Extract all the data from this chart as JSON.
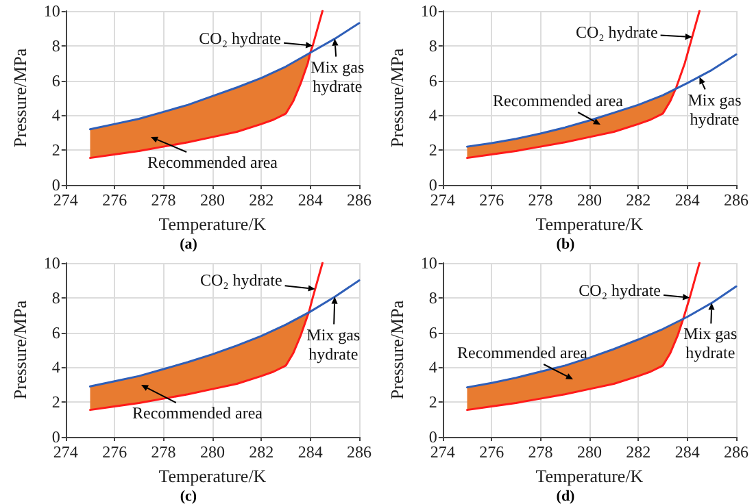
{
  "chart_data": [
    {
      "type": "line",
      "title": "(a)",
      "xlabel": "Temperature/K",
      "ylabel": "Pressure/MPa",
      "xlim": [
        274,
        286
      ],
      "xticks": [
        274,
        276,
        278,
        280,
        282,
        284,
        286
      ],
      "ylim": [
        0,
        10
      ],
      "yticks": [
        0,
        2,
        4,
        6,
        8,
        10
      ],
      "grid": true,
      "marker": "none",
      "line_style": "solid",
      "annotations": [
        {
          "text": "CO₂ hydrate",
          "x": 284.1,
          "y": 8.0
        },
        {
          "text": "Mix gas hydrate",
          "x": 285,
          "y": 8.4
        },
        "Recommended area"
      ],
      "series": [
        {
          "color": "#ff1a1a",
          "x": [
            275,
            276,
            277,
            278,
            279,
            280,
            281,
            282,
            282.5,
            283,
            283.3,
            283.6,
            283.9,
            284.0,
            284.1,
            284.3,
            284.5
          ],
          "values": [
            1.55,
            1.75,
            1.95,
            2.2,
            2.45,
            2.75,
            3.05,
            3.5,
            3.75,
            4.1,
            4.8,
            5.8,
            7.0,
            7.6,
            8.0,
            9.0,
            10
          ],
          "lower": [
            1.55,
            1.75,
            1.95,
            2.2,
            2.45,
            2.75,
            3.05,
            3.5,
            3.75,
            4.1,
            4.8,
            5.8,
            7.0,
            7.6,
            null,
            null,
            null
          ],
          "upper": [
            3.2,
            3.5,
            3.8,
            4.2,
            4.6,
            5.1,
            5.6,
            6.15,
            6.45,
            6.8,
            7.0,
            7.25,
            7.5,
            7.6,
            null,
            null,
            null
          ]
        },
        {
          "color": "#2f5fb8",
          "x": [
            275,
            276,
            277,
            278,
            279,
            280,
            281,
            282,
            283,
            284,
            285,
            286
          ],
          "values": [
            3.2,
            3.5,
            3.8,
            4.2,
            4.6,
            5.1,
            5.6,
            6.15,
            6.8,
            7.6,
            8.4,
            9.3
          ]
        }
      ]
    },
    {
      "type": "line",
      "title": "(b)",
      "xlabel": "Temperature/K",
      "ylabel": "Pressure/MPa",
      "xlim": [
        274,
        286
      ],
      "xticks": [
        274,
        276,
        278,
        280,
        282,
        284,
        286
      ],
      "ylim": [
        0,
        10
      ],
      "yticks": [
        0,
        2,
        4,
        6,
        8,
        10
      ],
      "grid": true,
      "marker": "none",
      "line_style": "solid",
      "annotations": [
        {
          "text": "CO₂ hydrate",
          "x": 284.2,
          "y": 8.5
        },
        {
          "text": "Mix gas hydrate",
          "x": 284.5,
          "y": 6.2
        },
        "Recommended area"
      ],
      "series": [
        {
          "color": "#ff1a1a",
          "x": [
            275,
            276,
            277,
            278,
            279,
            280,
            281,
            282,
            282.5,
            283,
            283.3,
            283.55,
            283.9,
            284.1,
            284.3,
            284.5
          ],
          "values": [
            1.55,
            1.75,
            1.95,
            2.2,
            2.45,
            2.75,
            3.05,
            3.5,
            3.75,
            4.1,
            4.8,
            5.6,
            7.0,
            8.0,
            9.0,
            10
          ],
          "lower": [
            1.55,
            1.75,
            1.95,
            2.2,
            2.45,
            2.75,
            3.05,
            3.5,
            3.75,
            4.1,
            4.8,
            5.6,
            null,
            null,
            null,
            null
          ],
          "upper": [
            2.2,
            2.4,
            2.65,
            2.95,
            3.3,
            3.7,
            4.15,
            4.6,
            4.85,
            5.15,
            5.35,
            5.6,
            null,
            null,
            null,
            null
          ]
        },
        {
          "color": "#2f5fb8",
          "x": [
            275,
            276,
            277,
            278,
            279,
            280,
            281,
            282,
            283,
            284,
            285,
            286
          ],
          "values": [
            2.2,
            2.4,
            2.65,
            2.95,
            3.3,
            3.7,
            4.15,
            4.6,
            5.15,
            5.85,
            6.6,
            7.5
          ]
        }
      ]
    },
    {
      "type": "line",
      "title": "(c)",
      "xlabel": "Temperature/K",
      "ylabel": "Pressure/MPa",
      "xlim": [
        274,
        286
      ],
      "xticks": [
        274,
        276,
        278,
        280,
        282,
        284,
        286
      ],
      "ylim": [
        0,
        10
      ],
      "yticks": [
        0,
        2,
        4,
        6,
        8,
        10
      ],
      "grid": true,
      "marker": "none",
      "line_style": "solid",
      "annotations": [
        {
          "text": "CO₂ hydrate",
          "x": 284.2,
          "y": 8.5
        },
        {
          "text": "Mix gas hydrate",
          "x": 285,
          "y": 8.05
        },
        "Recommended area"
      ],
      "series": [
        {
          "color": "#ff1a1a",
          "x": [
            275,
            276,
            277,
            278,
            279,
            280,
            281,
            282,
            282.5,
            283,
            283.3,
            283.6,
            283.95,
            284.1,
            284.3,
            284.5
          ],
          "values": [
            1.55,
            1.75,
            1.95,
            2.2,
            2.45,
            2.75,
            3.05,
            3.5,
            3.75,
            4.1,
            4.8,
            5.8,
            7.2,
            8.0,
            9.0,
            10
          ],
          "lower": [
            1.55,
            1.75,
            1.95,
            2.2,
            2.45,
            2.75,
            3.05,
            3.5,
            3.75,
            4.1,
            4.8,
            5.8,
            7.2,
            null,
            null,
            null
          ],
          "upper": [
            2.9,
            3.2,
            3.5,
            3.9,
            4.3,
            4.75,
            5.25,
            5.8,
            6.1,
            6.45,
            6.7,
            6.9,
            7.2,
            null,
            null,
            null
          ]
        },
        {
          "color": "#2f5fb8",
          "x": [
            275,
            276,
            277,
            278,
            279,
            280,
            281,
            282,
            283,
            284,
            285,
            286
          ],
          "values": [
            2.9,
            3.2,
            3.5,
            3.9,
            4.3,
            4.75,
            5.25,
            5.8,
            6.45,
            7.2,
            8.05,
            9.0
          ]
        }
      ]
    },
    {
      "type": "line",
      "title": "(d)",
      "xlabel": "Temperature/K",
      "ylabel": "Pressure/MPa",
      "xlim": [
        274,
        286
      ],
      "xticks": [
        274,
        276,
        278,
        280,
        282,
        284,
        286
      ],
      "ylim": [
        0,
        10
      ],
      "yticks": [
        0,
        2,
        4,
        6,
        8,
        10
      ],
      "grid": true,
      "marker": "none",
      "line_style": "solid",
      "annotations": [
        {
          "text": "CO₂ hydrate",
          "x": 284.1,
          "y": 8.0
        },
        {
          "text": "Mix gas hydrate",
          "x": 285,
          "y": 7.7
        },
        "Recommended area"
      ],
      "series": [
        {
          "color": "#ff1a1a",
          "x": [
            275,
            276,
            277,
            278,
            279,
            280,
            281,
            282,
            282.5,
            283,
            283.3,
            283.6,
            283.85,
            284.1,
            284.3,
            284.5
          ],
          "values": [
            1.55,
            1.75,
            1.95,
            2.2,
            2.45,
            2.75,
            3.05,
            3.5,
            3.75,
            4.1,
            4.8,
            5.8,
            6.85,
            8.0,
            9.0,
            10
          ],
          "lower": [
            1.55,
            1.75,
            1.95,
            2.2,
            2.45,
            2.75,
            3.05,
            3.5,
            3.75,
            4.1,
            4.8,
            5.8,
            6.85,
            null,
            null,
            null
          ],
          "upper": [
            2.85,
            3.1,
            3.4,
            3.75,
            4.1,
            4.55,
            5.05,
            5.6,
            5.9,
            6.2,
            6.4,
            6.6,
            6.85,
            null,
            null,
            null
          ]
        },
        {
          "color": "#2f5fb8",
          "x": [
            275,
            276,
            277,
            278,
            279,
            280,
            281,
            282,
            283,
            284,
            285,
            286
          ],
          "values": [
            2.85,
            3.1,
            3.4,
            3.75,
            4.1,
            4.55,
            5.05,
            5.6,
            6.2,
            6.9,
            7.7,
            8.65
          ]
        }
      ]
    }
  ]
}
